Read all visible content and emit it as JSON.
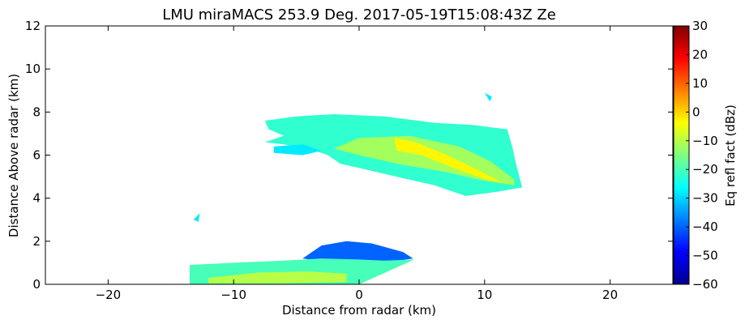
{
  "chart_data": {
    "type": "heatmap",
    "title": "LMU miraMACS 253.9 Deg. 2017-05-19T15:08:43Z  Ze",
    "xlabel": "Distance from radar (km)",
    "ylabel": "Distance Above radar  (km)",
    "xlim": [
      -25,
      25
    ],
    "ylim": [
      0,
      12
    ],
    "xticks": [
      -20,
      -10,
      0,
      10,
      20
    ],
    "xtick_labels": [
      "−20",
      "−10",
      "0",
      "10",
      "20"
    ],
    "yticks": [
      0,
      2,
      4,
      6,
      8,
      10,
      12
    ],
    "ytick_labels": [
      "0",
      "2",
      "4",
      "6",
      "8",
      "10",
      "12"
    ],
    "grid": false,
    "colorbar": {
      "label": "Eq refl fact (dBz)",
      "range": [
        -60,
        30
      ],
      "colormap": "jet",
      "ticks": [
        30,
        20,
        10,
        0,
        -10,
        -20,
        -30,
        -40,
        -50,
        -60
      ],
      "tick_labels": [
        "30",
        "20",
        "10",
        "0",
        "−10",
        "−20",
        "−30",
        "−40",
        "−50",
        "−60"
      ]
    },
    "regions": [
      {
        "name": "upper-cloud",
        "polygon": [
          [
            -7.5,
            7.6
          ],
          [
            -5,
            7.8
          ],
          [
            -2,
            7.9
          ],
          [
            2,
            7.8
          ],
          [
            6,
            7.5
          ],
          [
            9,
            7.4
          ],
          [
            11.8,
            7.2
          ],
          [
            12.2,
            6.4
          ],
          [
            12.5,
            5.6
          ],
          [
            13.0,
            4.5
          ],
          [
            11,
            4.3
          ],
          [
            8.5,
            4.1
          ],
          [
            6,
            4.6
          ],
          [
            3,
            5.0
          ],
          [
            0,
            5.4
          ],
          [
            -1.5,
            5.6
          ],
          [
            -2.5,
            6.0
          ],
          [
            -4,
            6.3
          ],
          [
            -6,
            6.5
          ],
          [
            -7.5,
            6.6
          ],
          [
            -6,
            6.9
          ],
          [
            -7.2,
            7.2
          ]
        ],
        "value_dbz": -22
      },
      {
        "name": "upper-cloud-core",
        "polygon": [
          [
            0,
            6.8
          ],
          [
            4,
            6.9
          ],
          [
            8,
            6.4
          ],
          [
            10.5,
            5.7
          ],
          [
            12.3,
            4.9
          ],
          [
            12.4,
            4.6
          ],
          [
            10,
            4.8
          ],
          [
            7,
            5.2
          ],
          [
            3,
            5.6
          ],
          [
            0,
            6.0
          ],
          [
            -2,
            6.3
          ]
        ],
        "value_dbz": -12
      },
      {
        "name": "upper-cloud-max",
        "polygon": [
          [
            2.8,
            6.8
          ],
          [
            4.5,
            6.6
          ],
          [
            7,
            6.0
          ],
          [
            9.5,
            5.3
          ],
          [
            11.5,
            4.7
          ],
          [
            10,
            4.9
          ],
          [
            7.5,
            5.4
          ],
          [
            5,
            6.0
          ],
          [
            3,
            6.2
          ]
        ],
        "value_dbz": -3
      },
      {
        "name": "left-streak",
        "polygon": [
          [
            -6.8,
            6.4
          ],
          [
            -4.5,
            6.5
          ],
          [
            -3,
            6.2
          ],
          [
            -4.5,
            6.0
          ],
          [
            -6.8,
            6.1
          ]
        ],
        "value_dbz": -28
      },
      {
        "name": "low-cloud-blue",
        "polygon": [
          [
            -4.5,
            1.2
          ],
          [
            -3,
            1.8
          ],
          [
            -1,
            2.0
          ],
          [
            1,
            1.9
          ],
          [
            3.5,
            1.5
          ],
          [
            4.3,
            1.2
          ],
          [
            2,
            1.0
          ],
          [
            0,
            0.9
          ],
          [
            -2,
            1.0
          ]
        ],
        "value_dbz": -40
      },
      {
        "name": "low-cloud",
        "polygon": [
          [
            -13.5,
            0.2
          ],
          [
            -13.5,
            0.9
          ],
          [
            -10,
            1.0
          ],
          [
            -6,
            1.1
          ],
          [
            -3,
            1.2
          ],
          [
            0,
            1.15
          ],
          [
            2,
            1.1
          ],
          [
            4.4,
            1.15
          ],
          [
            0,
            0.0
          ],
          [
            -13.5,
            0.0
          ]
        ],
        "value_dbz": -20
      },
      {
        "name": "low-cloud-core",
        "polygon": [
          [
            -12,
            0.3
          ],
          [
            -8,
            0.55
          ],
          [
            -4,
            0.6
          ],
          [
            -1,
            0.5
          ],
          [
            -1,
            0.1
          ],
          [
            -6,
            0.05
          ],
          [
            -12,
            0.05
          ]
        ],
        "value_dbz": -10
      },
      {
        "name": "isolated-patch-left",
        "polygon": [
          [
            -13.2,
            3.0
          ],
          [
            -12.7,
            3.3
          ],
          [
            -12.8,
            2.9
          ]
        ],
        "value_dbz": -28
      },
      {
        "name": "isolated-patch-right",
        "polygon": [
          [
            10,
            8.9
          ],
          [
            10.6,
            8.7
          ],
          [
            10.4,
            8.5
          ]
        ],
        "value_dbz": -28
      }
    ]
  }
}
